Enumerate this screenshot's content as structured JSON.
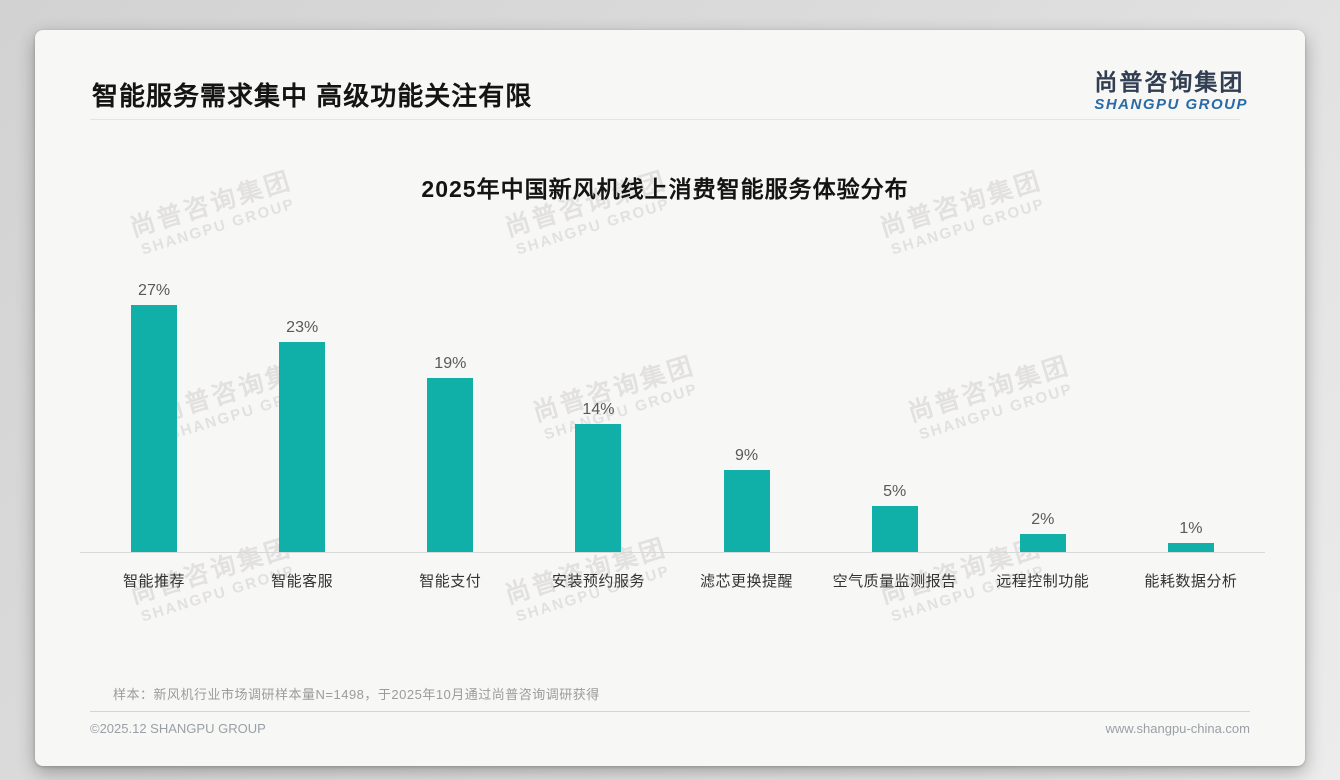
{
  "page": {
    "title": "智能服务需求集中 高级功能关注有限",
    "logo": {
      "cn": "尚普咨询集团",
      "en": "SHANGPU GROUP"
    },
    "watermark": {
      "cn": "尚普咨询集团",
      "en": "SHANGPU GROUP"
    },
    "footnote": "样本：新风机行业市场调研样本量N=1498，于2025年10月通过尚普咨询调研获得",
    "footer": {
      "left": "©2025.12 SHANGPU GROUP",
      "right": "www.shangpu-china.com"
    }
  },
  "chart_data": {
    "type": "bar",
    "title": "2025年中国新风机线上消费智能服务体验分布",
    "categories": [
      "智能推荐",
      "智能客服",
      "智能支付",
      "安装预约服务",
      "滤芯更换提醒",
      "空气质量监测报告",
      "远程控制功能",
      "能耗数据分析"
    ],
    "values": [
      27,
      23,
      19,
      14,
      9,
      5,
      2,
      1
    ],
    "value_labels": [
      "27%",
      "23%",
      "19%",
      "14%",
      "9%",
      "5%",
      "2%",
      "1%"
    ],
    "unit": "%",
    "bar_color": "#10b0a8",
    "value_label_color": "#595959",
    "ylim": [
      0,
      30
    ],
    "grid": false,
    "legend": false,
    "baseline_axis": true
  }
}
